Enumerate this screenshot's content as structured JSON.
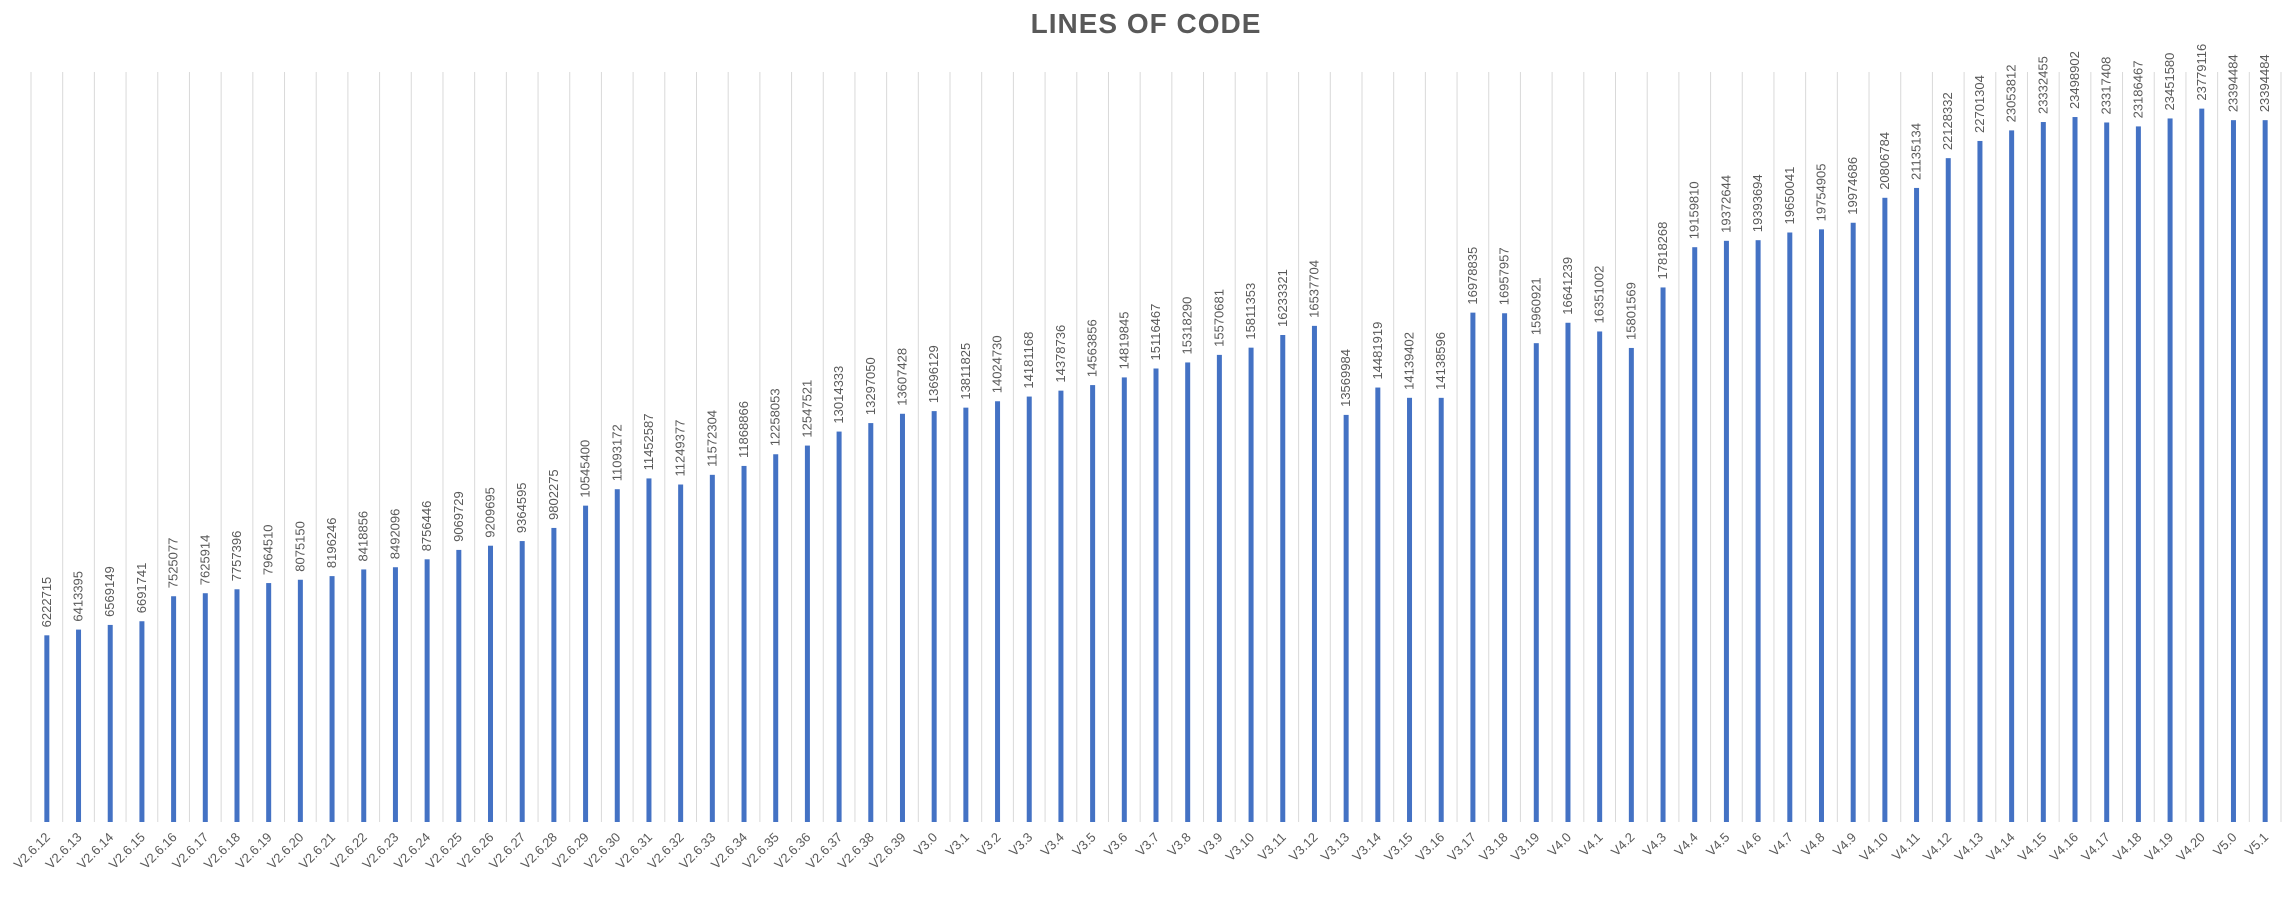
{
  "chart_data": {
    "type": "bar",
    "title": "LINES OF CODE",
    "xlabel": "",
    "ylabel": "",
    "ylim": [
      0,
      25000000
    ],
    "grid": "vertical",
    "legend": "none",
    "bar_color": "#4472C4",
    "grid_color": "#D9D9D9",
    "text_color": "#595959",
    "categories": [
      "V2.6.12",
      "V2.6.13",
      "V2.6.14",
      "V2.6.15",
      "V2.6.16",
      "V2.6.17",
      "V2.6.18",
      "V2.6.19",
      "V2.6.20",
      "V2.6.21",
      "V2.6.22",
      "V2.6.23",
      "V2.6.24",
      "V2.6.25",
      "V2.6.26",
      "V2.6.27",
      "V2.6.28",
      "V2.6.29",
      "V2.6.30",
      "V2.6.31",
      "V2.6.32",
      "V2.6.33",
      "V2.6.34",
      "V2.6.35",
      "V2.6.36",
      "V2.6.37",
      "V2.6.38",
      "V2.6.39",
      "V3.0",
      "V3.1",
      "V3.2",
      "V3.3",
      "V3.4",
      "V3.5",
      "V3.6",
      "V3.7",
      "V3.8",
      "V3.9",
      "V3.10",
      "V3.11",
      "V3.12",
      "V3.13",
      "V3.14",
      "V3.15",
      "V3.16",
      "V3.17",
      "V3.18",
      "V3.19",
      "V4.0",
      "V4.1",
      "V4.2",
      "V4.3",
      "V4.4",
      "V4.5",
      "V4.6",
      "V4.7",
      "V4.8",
      "V4.9",
      "V4.10",
      "V4.11",
      "V4.12",
      "V4.13",
      "V4.14",
      "V4.15",
      "V4.16",
      "V4.17",
      "V4.18",
      "V4.19",
      "V4.20",
      "V5.0",
      "V5.1"
    ],
    "values": [
      6222715,
      6413395,
      6569149,
      6691741,
      7525077,
      7625914,
      7757396,
      7964510,
      8075150,
      8196246,
      8418856,
      8492096,
      8756446,
      9069729,
      9209695,
      9364595,
      9802275,
      10545400,
      11093172,
      11452587,
      11249377,
      11572304,
      11868866,
      12258053,
      12547521,
      13014333,
      13297050,
      13607428,
      13696129,
      13811825,
      14024730,
      14181168,
      14378736,
      14563856,
      14819845,
      15116467,
      15318290,
      15570681,
      15811353,
      16233321,
      16537704,
      13569984,
      14481919,
      14139402,
      14138596,
      16978835,
      16957957,
      15960921,
      16641239,
      16351002,
      15801569,
      17818268,
      19159810,
      19372644,
      19393694,
      19650041,
      19754905,
      19974686,
      20806784,
      21135134,
      22128332,
      22701304,
      23053812,
      23332455,
      23498902,
      23317408,
      23186467,
      23451580,
      23779116,
      23394484,
      23394484
    ]
  }
}
